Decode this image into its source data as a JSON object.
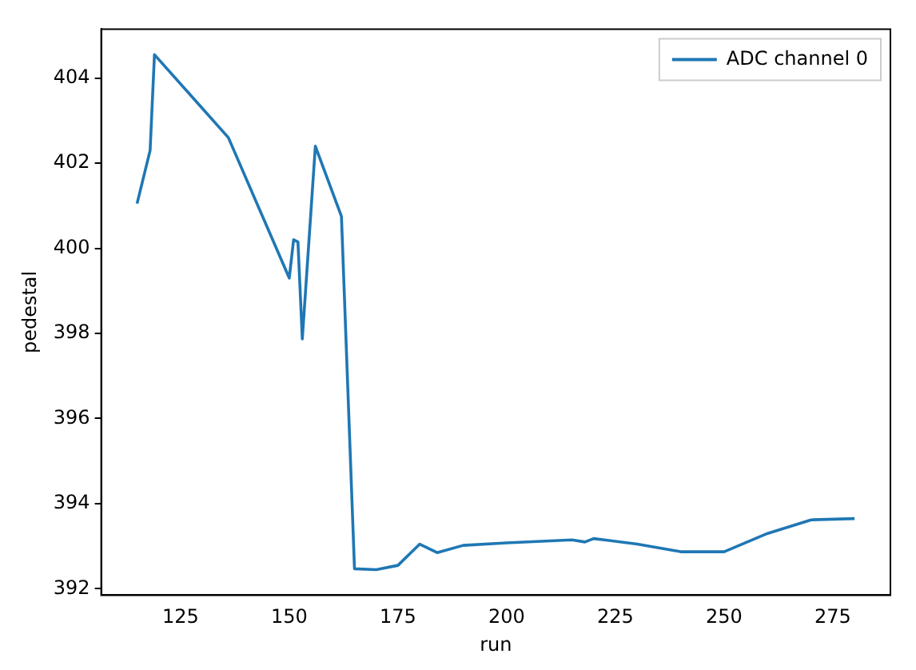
{
  "chart_data": {
    "type": "line",
    "xlabel": "run",
    "ylabel": "pedestal",
    "xlim": [
      106.75,
      288.25
    ],
    "ylim": [
      391.85,
      405.15
    ],
    "xticks": [
      125,
      150,
      175,
      200,
      225,
      250,
      275
    ],
    "yticks": [
      392,
      394,
      396,
      398,
      400,
      402,
      404
    ],
    "legend": "top right",
    "grid": false,
    "series": [
      {
        "name": "ADC channel 0",
        "color": "#1f77b4",
        "x": [
          115,
          118,
          119,
          136,
          150,
          151,
          152,
          153,
          156,
          162,
          165,
          170,
          175,
          180,
          184,
          190,
          200,
          215,
          218,
          220,
          230,
          240,
          250,
          260,
          270,
          280
        ],
        "values": [
          401.05,
          402.3,
          404.55,
          402.6,
          399.3,
          400.2,
          400.15,
          397.87,
          402.4,
          400.75,
          392.47,
          392.45,
          392.55,
          393.05,
          392.85,
          393.02,
          393.08,
          393.15,
          393.1,
          393.18,
          393.05,
          392.87,
          392.87,
          393.3,
          393.62,
          393.65
        ]
      }
    ]
  }
}
